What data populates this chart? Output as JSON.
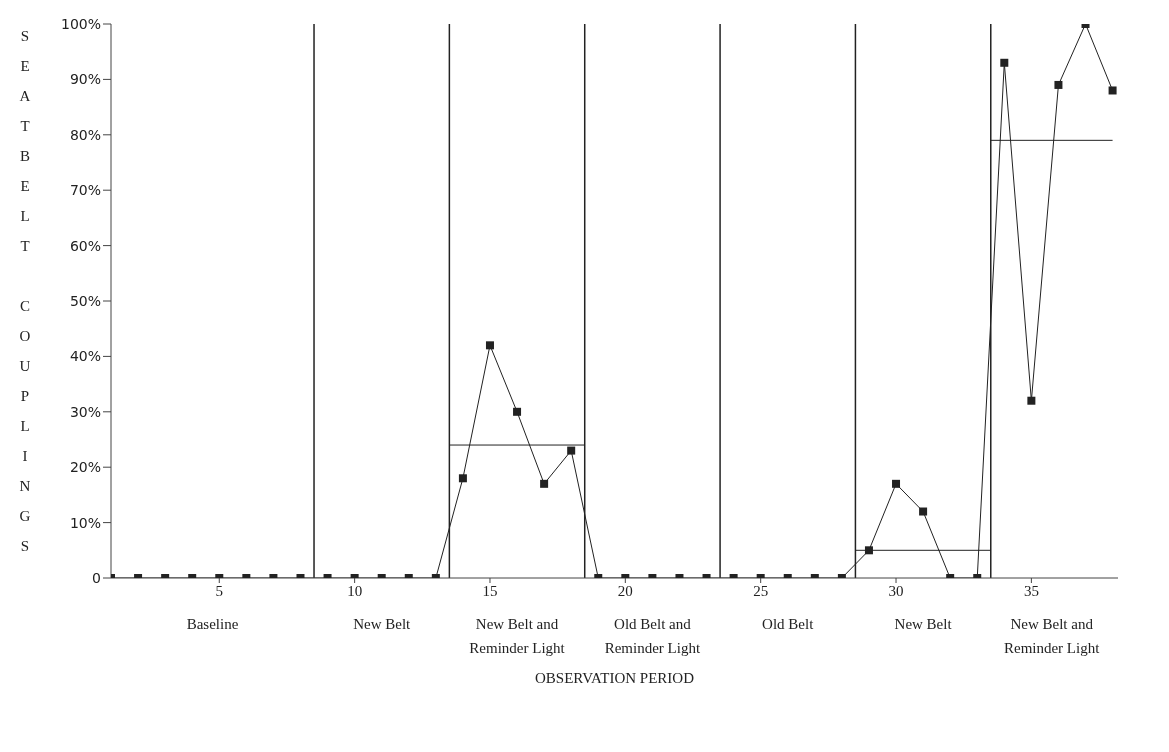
{
  "chart_data": {
    "type": "line",
    "xlabel": "OBSERVATION PERIOD",
    "ylabel": "SEATBELT COUPLINGS",
    "xlim": [
      1,
      38.2
    ],
    "xticks": [
      5,
      10,
      15,
      20,
      25,
      30,
      35
    ],
    "ylim": [
      0,
      100
    ],
    "yticks": [
      {
        "value": 0,
        "label": "0"
      },
      {
        "value": 10,
        "label": "10%"
      },
      {
        "value": 20,
        "label": "20%"
      },
      {
        "value": 30,
        "label": "30%"
      },
      {
        "value": 40,
        "label": "40%"
      },
      {
        "value": 50,
        "label": "50%"
      },
      {
        "value": 60,
        "label": "60%"
      },
      {
        "value": 70,
        "label": "70%"
      },
      {
        "value": 80,
        "label": "80%"
      },
      {
        "value": 90,
        "label": "90%"
      },
      {
        "value": 100,
        "label": "100%"
      }
    ],
    "grid": false,
    "legend": false,
    "marker": "square",
    "line_style": "solid",
    "x": [
      1,
      2,
      3,
      4,
      5,
      6,
      7,
      8,
      9,
      10,
      11,
      12,
      13,
      14,
      15,
      16,
      17,
      18,
      19,
      20,
      21,
      22,
      23,
      24,
      25,
      26,
      27,
      28,
      29,
      30,
      31,
      32,
      33,
      34,
      35,
      36,
      37,
      38
    ],
    "series": [
      {
        "color": "#222222",
        "values": [
          0,
          0,
          0,
          0,
          0,
          0,
          0,
          0,
          0,
          0,
          0,
          0,
          0,
          18,
          42,
          30,
          17,
          23,
          0,
          0,
          0,
          0,
          0,
          0,
          0,
          0,
          0,
          0,
          5,
          17,
          12,
          0,
          0,
          93,
          32,
          89,
          100,
          88
        ]
      },
      {
        "type": "line",
        "color": "#222222",
        "marker": "none",
        "x": [
          13.5,
          18.5
        ],
        "values": [
          24,
          24
        ]
      },
      {
        "type": "line",
        "color": "#222222",
        "marker": "none",
        "x": [
          28.5,
          33.5
        ],
        "values": [
          5,
          5
        ]
      },
      {
        "type": "line",
        "color": "#222222",
        "marker": "none",
        "x": [
          33.5,
          38
        ],
        "values": [
          79,
          79
        ]
      }
    ],
    "ref_lines": [
      {
        "axis": "x",
        "value": 8.5,
        "color": "#222222"
      },
      {
        "axis": "x",
        "value": 13.5,
        "color": "#222222"
      },
      {
        "axis": "x",
        "value": 18.5,
        "color": "#222222"
      },
      {
        "axis": "x",
        "value": 23.5,
        "color": "#222222"
      },
      {
        "axis": "x",
        "value": 28.5,
        "color": "#222222"
      },
      {
        "axis": "x",
        "value": 33.5,
        "color": "#222222"
      }
    ],
    "annotations": [
      "Baseline",
      "New Belt",
      "New Belt and Reminder Light",
      "Old Belt and Reminder Light",
      "Old Belt",
      "New Belt",
      "New Belt and Reminder Light"
    ]
  }
}
